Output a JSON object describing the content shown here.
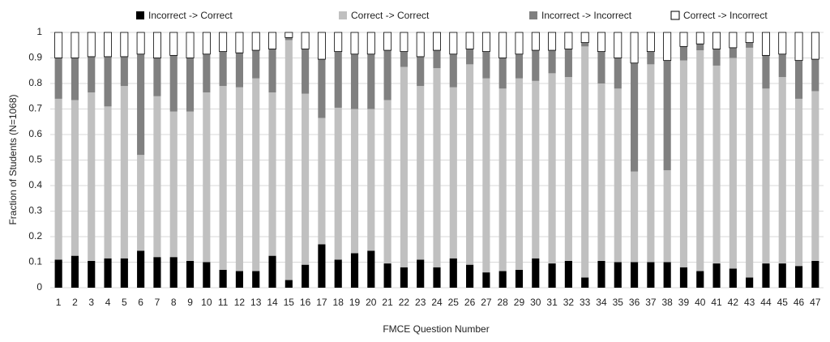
{
  "chart_data": {
    "type": "stacked_bar",
    "x_label": "FMCE Question Number",
    "y_label": "Fraction of Students (N=1068)",
    "categories": [
      "1",
      "2",
      "3",
      "4",
      "5",
      "6",
      "7",
      "8",
      "9",
      "10",
      "11",
      "12",
      "13",
      "14",
      "15",
      "16",
      "17",
      "18",
      "19",
      "20",
      "21",
      "22",
      "23",
      "24",
      "25",
      "26",
      "27",
      "28",
      "29",
      "30",
      "31",
      "32",
      "33",
      "34",
      "35",
      "36",
      "37",
      "38",
      "39",
      "40",
      "41",
      "42",
      "43",
      "44",
      "45",
      "46",
      "47"
    ],
    "series": [
      {
        "name": "Incorrect -> Correct",
        "color": "#000000",
        "values": [
          0.11,
          0.125,
          0.105,
          0.115,
          0.115,
          0.145,
          0.12,
          0.12,
          0.105,
          0.1,
          0.07,
          0.065,
          0.065,
          0.125,
          0.03,
          0.09,
          0.17,
          0.11,
          0.135,
          0.145,
          0.095,
          0.08,
          0.11,
          0.08,
          0.115,
          0.09,
          0.06,
          0.065,
          0.07,
          0.115,
          0.095,
          0.105,
          0.04,
          0.105,
          0.1,
          0.1,
          0.1,
          0.1,
          0.08,
          0.065,
          0.095,
          0.075,
          0.04,
          0.095,
          0.095,
          0.085,
          0.105
        ]
      },
      {
        "name": "Correct -> Correct",
        "color": "#c0c0c0",
        "values": [
          0.63,
          0.61,
          0.66,
          0.595,
          0.675,
          0.375,
          0.63,
          0.57,
          0.585,
          0.665,
          0.72,
          0.72,
          0.755,
          0.64,
          0.94,
          0.67,
          0.495,
          0.595,
          0.565,
          0.555,
          0.64,
          0.785,
          0.68,
          0.78,
          0.67,
          0.785,
          0.76,
          0.715,
          0.75,
          0.695,
          0.745,
          0.72,
          0.905,
          0.695,
          0.68,
          0.355,
          0.775,
          0.36,
          0.81,
          0.865,
          0.775,
          0.825,
          0.9,
          0.685,
          0.73,
          0.655,
          0.665
        ]
      },
      {
        "name": "Incorrect -> Incorrect",
        "color": "#808080",
        "values": [
          0.16,
          0.165,
          0.14,
          0.195,
          0.115,
          0.395,
          0.15,
          0.22,
          0.21,
          0.15,
          0.135,
          0.135,
          0.11,
          0.17,
          0.01,
          0.175,
          0.23,
          0.22,
          0.215,
          0.215,
          0.195,
          0.06,
          0.115,
          0.07,
          0.13,
          0.06,
          0.105,
          0.12,
          0.095,
          0.12,
          0.09,
          0.11,
          0.015,
          0.125,
          0.12,
          0.425,
          0.05,
          0.43,
          0.055,
          0.025,
          0.065,
          0.04,
          0.02,
          0.13,
          0.09,
          0.15,
          0.125
        ]
      },
      {
        "name": "Correct -> Incorrect",
        "color": "#ffffff",
        "values": [
          0.1,
          0.1,
          0.095,
          0.095,
          0.095,
          0.085,
          0.1,
          0.09,
          0.1,
          0.085,
          0.075,
          0.08,
          0.07,
          0.065,
          0.02,
          0.065,
          0.105,
          0.075,
          0.085,
          0.085,
          0.07,
          0.075,
          0.095,
          0.07,
          0.085,
          0.065,
          0.075,
          0.1,
          0.085,
          0.07,
          0.07,
          0.065,
          0.04,
          0.075,
          0.1,
          0.12,
          0.075,
          0.11,
          0.055,
          0.045,
          0.065,
          0.06,
          0.04,
          0.09,
          0.085,
          0.11,
          0.105
        ]
      }
    ],
    "ylim": [
      0,
      1
    ],
    "yticks": [
      0,
      0.1,
      0.2,
      0.3,
      0.4,
      0.5,
      0.6,
      0.7,
      0.8,
      0.9,
      1
    ],
    "grid": true,
    "legend": "top"
  }
}
